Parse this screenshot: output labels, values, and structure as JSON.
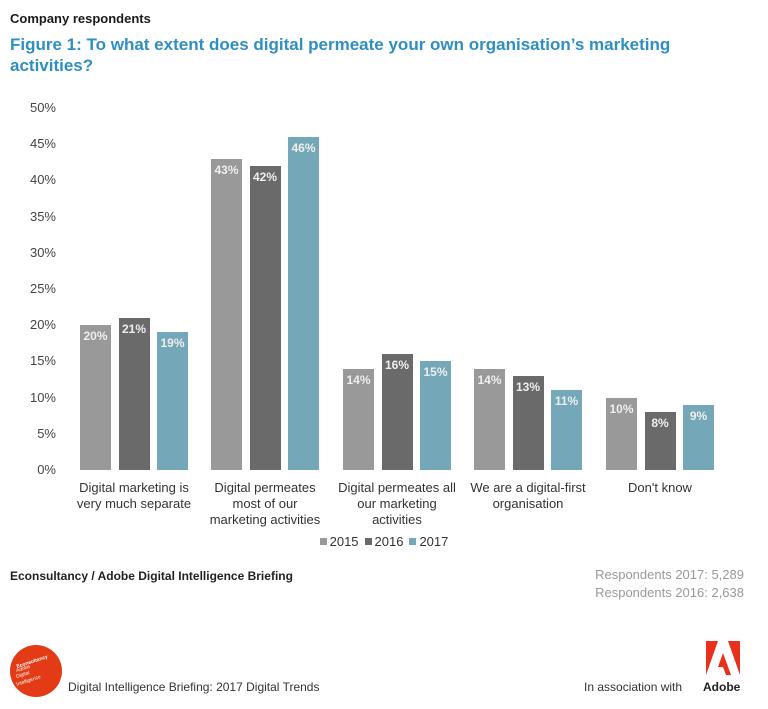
{
  "header": {
    "subtitle": "Company respondents",
    "title": "Figure 1: To what extent does digital permeate your own organisation’s marketing activities?"
  },
  "colors": {
    "title": "#2e8fc0",
    "s2015": "#999999",
    "s2016": "#6a6a6a",
    "s2017": "#74a8b8",
    "econsultancy_red": "#e23b16",
    "adobe_red": "#e8301c"
  },
  "chart_data": {
    "type": "bar",
    "title": "Figure 1: To what extent does digital permeate your own organisation’s marketing activities?",
    "subtitle": "Company respondents",
    "xlabel": "",
    "ylabel": "",
    "ylim": [
      0,
      50
    ],
    "yticks": [
      "0%",
      "5%",
      "10%",
      "15%",
      "20%",
      "25%",
      "30%",
      "35%",
      "40%",
      "45%",
      "50%"
    ],
    "grid": false,
    "legend_position": "bottom",
    "categories": [
      "Digital marketing is very much separate",
      "Digital permeates most of our marketing activities",
      "Digital permeates all our marketing activities",
      "We are a digital-first organisation",
      "Don't know"
    ],
    "series": [
      {
        "name": "2015",
        "values": [
          20,
          43,
          14,
          14,
          10
        ]
      },
      {
        "name": "2016",
        "values": [
          21,
          42,
          16,
          13,
          8
        ]
      },
      {
        "name": "2017",
        "values": [
          19,
          46,
          15,
          11,
          9
        ]
      }
    ]
  },
  "xlabels": [
    [
      "Digital marketing is",
      "very much separate"
    ],
    [
      "Digital permeates",
      "most of our",
      "marketing activities"
    ],
    [
      "Digital permeates all",
      "our marketing",
      "activities"
    ],
    [
      "We are a digital-first",
      "organisation"
    ],
    [
      "Don't know"
    ]
  ],
  "legend": [
    "2015",
    "2016",
    "2017"
  ],
  "footer": {
    "source": "Econsultancy / Adobe Digital Intelligence Briefing",
    "respondents_2017": "Respondents 2017: 5,289",
    "respondents_2016": "Respondents 2016: 2,638",
    "report_name": "Digital Intelligence Briefing: 2017 Digital Trends",
    "association": "In association with",
    "adobe_wordmark": "Adobe",
    "econ_logo_lines": [
      "Econsultancy",
      "Adobe",
      "Digital",
      "Intelligence"
    ]
  }
}
